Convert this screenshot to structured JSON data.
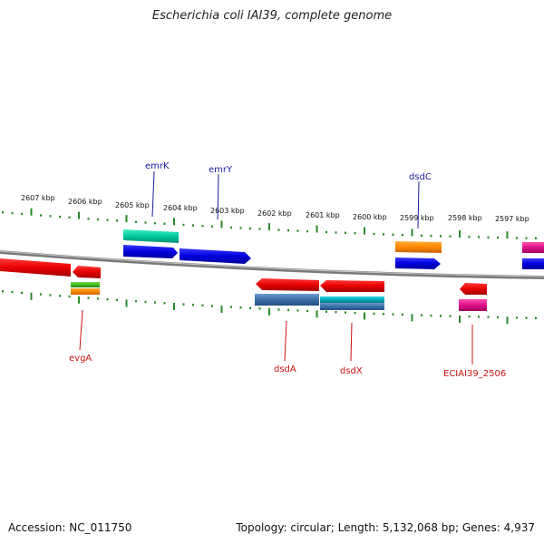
{
  "title": "Escherichia coli IAI39, complete genome",
  "footer": {
    "accession": "Accession: NC_011750",
    "stats": "Topology: circular; Length: 5,132,068 bp; Genes: 4,937"
  },
  "ruler_labels": [
    "2607 kbp",
    "2606 kbp",
    "2605 kbp",
    "2604 kbp",
    "2603 kbp",
    "2602 kbp",
    "2601 kbp",
    "2600 kbp",
    "2599 kbp",
    "2598 kbp",
    "2597 kbp"
  ],
  "gene_labels_top": [
    "emrK",
    "emrY",
    "dsdC"
  ],
  "gene_labels_bottom": [
    "evgA",
    "dsdA",
    "dsdX",
    "ECIAI39_2506"
  ],
  "colors": {
    "red": "#e80000",
    "blue": "#0000dd",
    "green": "#00c8a0",
    "orange": "#ff8800",
    "magenta": "#e0108a",
    "steel": "#3a6fa8",
    "teal": "#00a8b8",
    "lime": "#44bb22",
    "label_top": "#1c1c9a",
    "label_bottom": "#cc1111",
    "tick": "#2a8a2a"
  }
}
